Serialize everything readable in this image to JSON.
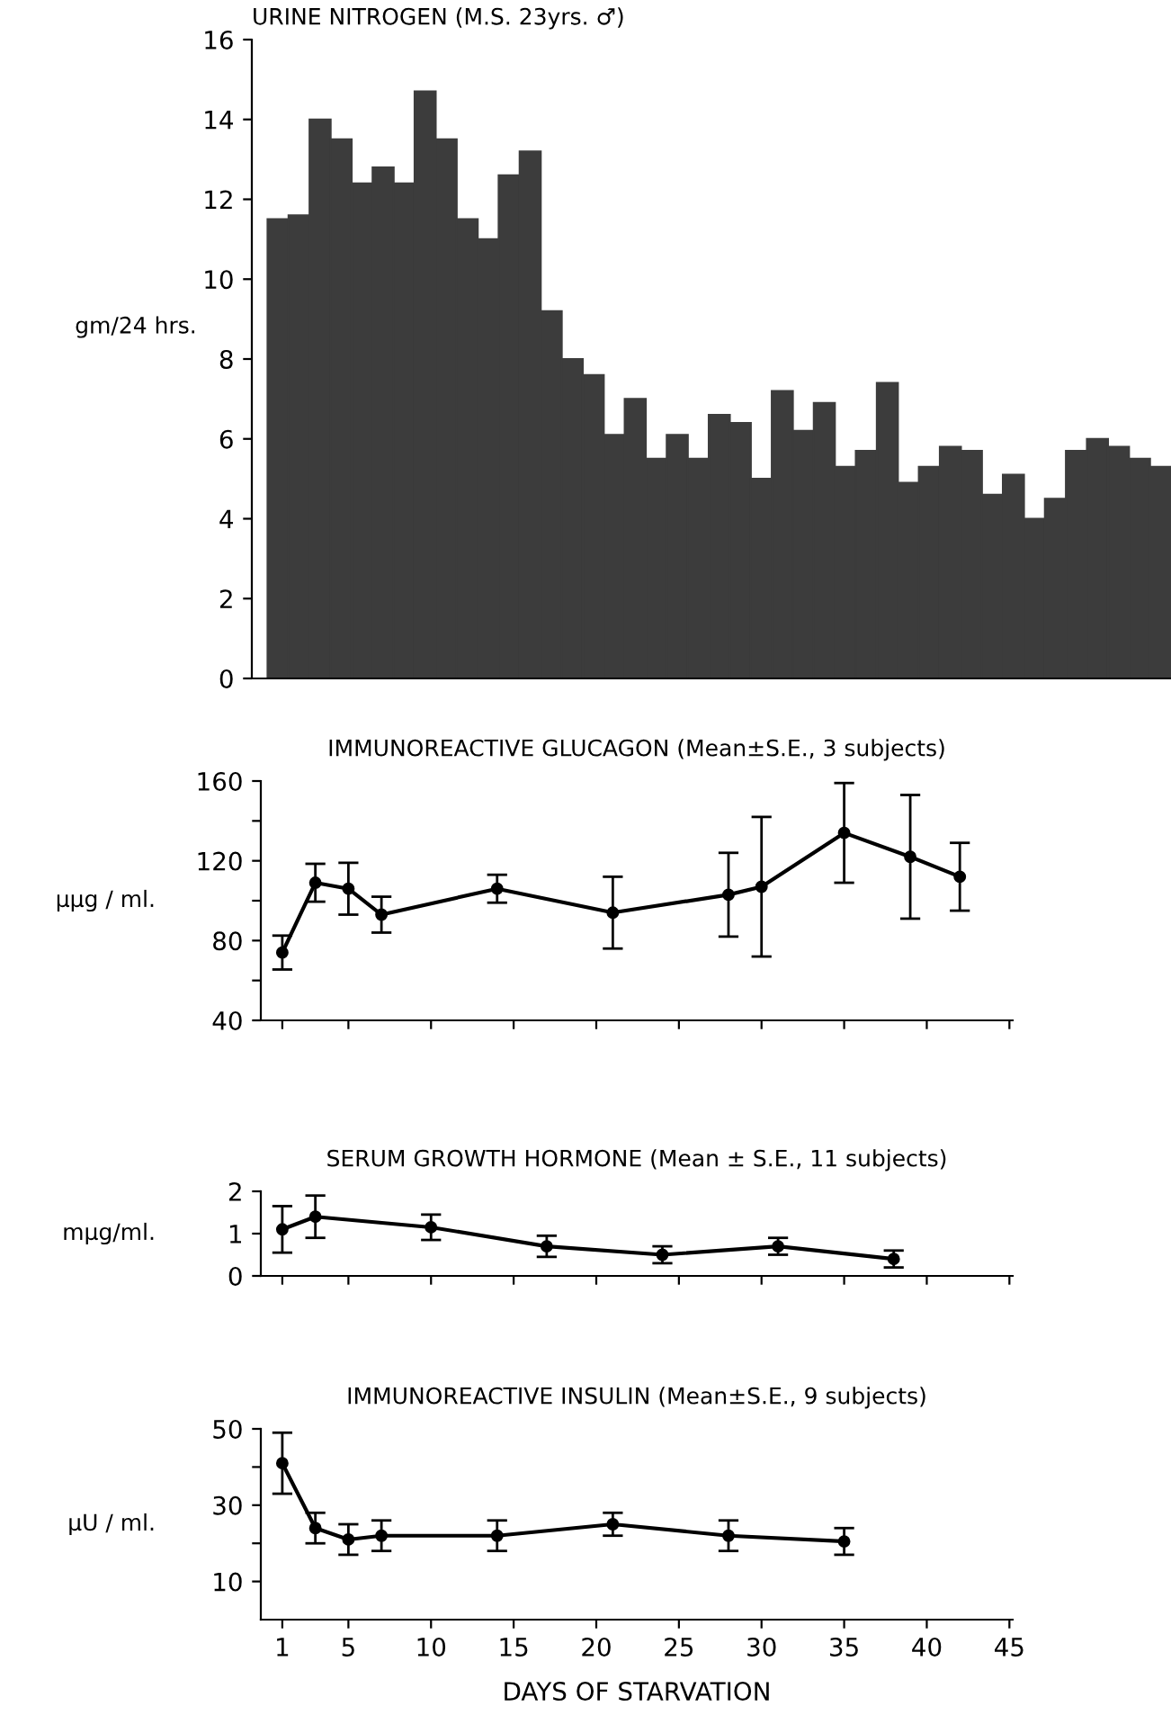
{
  "chart_data": [
    {
      "type": "bar",
      "title": "URINE NITROGEN (M.S. 23yrs. ♂)",
      "ylabel": "gm/24 hrs.",
      "categories": [
        null,
        null,
        null,
        null,
        null,
        null,
        null,
        null,
        null,
        null,
        null,
        null,
        null,
        null,
        null,
        null,
        null,
        null,
        null,
        null,
        null,
        null,
        null,
        null,
        null,
        null,
        null,
        null,
        null,
        null,
        null,
        null,
        null,
        null,
        null,
        null,
        null,
        null,
        null,
        null,
        null,
        null,
        null
      ],
      "values": [
        11.5,
        11.6,
        14.0,
        13.5,
        12.4,
        12.8,
        12.4,
        14.7,
        13.5,
        11.5,
        11.0,
        12.6,
        13.2,
        9.2,
        8.0,
        7.6,
        6.1,
        7.0,
        5.5,
        6.1,
        5.5,
        6.6,
        6.4,
        5.0,
        7.2,
        6.2,
        6.9,
        5.3,
        5.7,
        7.4,
        4.9,
        5.3,
        5.8,
        5.7,
        4.6,
        5.1,
        4.0,
        4.5,
        5.7,
        6.0,
        5.8,
        5.5,
        5.3
      ],
      "color": "#3c3c3c",
      "ylim": [
        0,
        16
      ],
      "yticks": [
        0,
        2,
        4,
        6,
        8,
        10,
        12,
        14,
        16
      ],
      "tick_labels": "y",
      "grid": false,
      "legend": false
    },
    {
      "type": "line",
      "title": "IMMUNOREACTIVE GLUCAGON (Mean±S.E., 3 subjects)",
      "ylabel": "μμg / ml.",
      "x": [
        1,
        3,
        5,
        7,
        14,
        21,
        28,
        30,
        35,
        39,
        42
      ],
      "values": [
        74,
        109,
        106,
        93,
        106,
        94,
        103,
        107,
        134,
        122,
        112
      ],
      "errors": [
        8.5,
        9.5,
        13,
        9,
        7,
        18,
        21,
        35,
        25,
        31,
        17
      ],
      "color": "#000000",
      "marker": "circle",
      "line_style": "solid",
      "xlim": [
        -0.3,
        45.2
      ],
      "xticks": [
        1,
        5,
        10,
        15,
        20,
        25,
        30,
        35,
        40,
        45
      ],
      "ylim": [
        40,
        160
      ],
      "yticks": [
        40,
        {
          "value": 60,
          "label": null
        },
        80,
        {
          "value": 100,
          "label": null
        },
        120,
        {
          "value": 140,
          "label": null
        },
        160
      ],
      "tick_labels": "y",
      "grid": false,
      "legend": false
    },
    {
      "type": "line",
      "title": "SERUM GROWTH HORMONE (Mean ± S.E., 11 subjects)",
      "ylabel": "mμg/ml.",
      "x": [
        1,
        3,
        10,
        17,
        24,
        31,
        38
      ],
      "values": [
        1.1,
        1.4,
        1.15,
        0.7,
        0.5,
        0.7,
        0.4
      ],
      "errors": [
        0.55,
        0.5,
        0.3,
        0.25,
        0.2,
        0.2,
        0.2
      ],
      "color": "#000000",
      "marker": "circle",
      "line_style": "solid",
      "xlim": [
        -0.3,
        45.2
      ],
      "xticks": [
        1,
        5,
        10,
        15,
        20,
        25,
        30,
        35,
        40,
        45
      ],
      "ylim": [
        0,
        2
      ],
      "yticks": [
        0,
        1,
        2
      ],
      "tick_labels": "y",
      "grid": false,
      "legend": false
    },
    {
      "type": "line",
      "title": "IMMUNOREACTIVE INSULIN (Mean±S.E., 9 subjects)",
      "ylabel": "μU / ml.",
      "xlabel": "DAYS OF STARVATION",
      "x": [
        1,
        3,
        5,
        7,
        14,
        21,
        28,
        35
      ],
      "values": [
        41,
        24,
        21,
        22,
        22,
        25,
        22,
        20.5
      ],
      "errors": [
        8,
        4,
        4,
        4,
        4,
        3,
        4,
        3.5
      ],
      "color": "#000000",
      "marker": "circle",
      "line_style": "solid",
      "xlim": [
        -0.3,
        45.2
      ],
      "xticks": [
        1,
        5,
        10,
        15,
        20,
        25,
        30,
        35,
        40,
        45
      ],
      "ylim": [
        0,
        50
      ],
      "yticks": [
        10,
        {
          "value": 20,
          "label": null
        },
        30,
        {
          "value": 40,
          "label": null
        },
        50
      ],
      "grid": false,
      "legend": false
    }
  ]
}
